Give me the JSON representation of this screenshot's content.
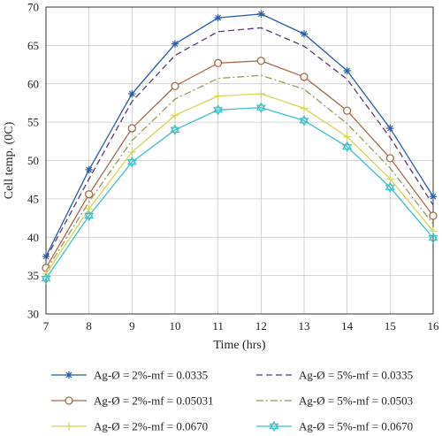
{
  "chart_data": {
    "type": "line",
    "xlabel": "Time (hrs)",
    "ylabel": "Cell temp. (0C)",
    "xlim": [
      7,
      16
    ],
    "ylim": [
      30,
      70
    ],
    "x": [
      7,
      8,
      9,
      10,
      11,
      12,
      13,
      14,
      15,
      16
    ],
    "x_ticks": [
      "7",
      "8",
      "9",
      "10",
      "11",
      "12",
      "13",
      "14",
      "15",
      "16"
    ],
    "y_ticks": [
      "30",
      "35",
      "40",
      "45",
      "50",
      "55",
      "60",
      "65",
      "70"
    ],
    "grid": true,
    "legend_position": "bottom",
    "series": [
      {
        "name": "Ag-Ø = 2%-mf = 0.0335",
        "values": [
          37.5,
          48.8,
          58.7,
          65.2,
          68.6,
          69.1,
          66.5,
          61.7,
          54.2,
          45.3
        ],
        "color": "#2a5ca8",
        "marker": "star",
        "dash": "solid"
      },
      {
        "name": "Ag-Ø = 5%-mf = 0.0335",
        "values": [
          37.2,
          47.6,
          57.7,
          63.7,
          66.8,
          67.3,
          64.9,
          60.6,
          53.0,
          44.2
        ],
        "color": "#5a3a78",
        "marker": "none",
        "dash": "dashed"
      },
      {
        "name": "Ag-Ø = 2%-mf = 0.05031",
        "values": [
          36.0,
          45.6,
          54.2,
          59.7,
          62.7,
          63.0,
          60.9,
          56.5,
          50.3,
          42.8
        ],
        "color": "#a86a4a",
        "marker": "circle",
        "dash": "solid"
      },
      {
        "name": "Ag-Ø = 5%-mf = 0.0503",
        "values": [
          35.6,
          44.6,
          52.6,
          58.0,
          60.7,
          61.1,
          59.3,
          54.8,
          49.0,
          41.7
        ],
        "color": "#9a9a5a",
        "marker": "none",
        "dash": "dashdot"
      },
      {
        "name": "Ag-Ø = 2%-mf = 0.0670",
        "values": [
          35.2,
          43.7,
          51.1,
          55.9,
          58.4,
          58.7,
          56.8,
          53.1,
          47.6,
          40.8
        ],
        "color": "#d8d45a",
        "marker": "plus",
        "dash": "solid"
      },
      {
        "name": "Ag-Ø = 5%-mf = 0.0670",
        "values": [
          34.6,
          42.8,
          49.8,
          54.0,
          56.6,
          56.9,
          55.2,
          51.8,
          46.5,
          39.9
        ],
        "color": "#3cc0c8",
        "marker": "hexagram",
        "dash": "solid"
      }
    ]
  }
}
